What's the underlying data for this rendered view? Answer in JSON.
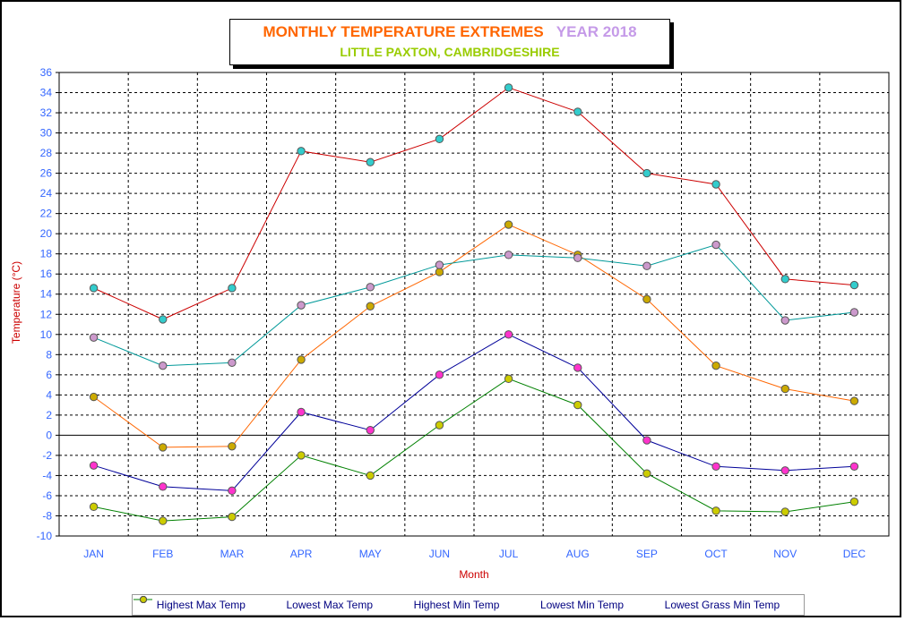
{
  "title": {
    "main": "MONTHLY TEMPERATURE EXTREMES",
    "year": "YEAR  2018",
    "subtitle": "LITTLE PAXTON, CAMBRIDGESHIRE"
  },
  "chart_data": {
    "type": "line",
    "title": "MONTHLY TEMPERATURE EXTREMES   YEAR 2018",
    "subtitle": "LITTLE PAXTON, CAMBRIDGESHIRE",
    "xlabel": "Month",
    "ylabel": "Temperature (°C)",
    "ylim": [
      -10,
      36
    ],
    "yticks": [
      -10,
      -8,
      -6,
      -4,
      -2,
      0,
      2,
      4,
      6,
      8,
      10,
      12,
      14,
      16,
      18,
      20,
      22,
      24,
      26,
      28,
      30,
      32,
      34,
      36
    ],
    "grid": true,
    "legend_position": "bottom",
    "categories": [
      "JAN",
      "FEB",
      "MAR",
      "APR",
      "MAY",
      "JUN",
      "JUL",
      "AUG",
      "SEP",
      "OCT",
      "NOV",
      "DEC"
    ],
    "series": [
      {
        "name": "Highest Max Temp",
        "line_color": "#cc0000",
        "marker_color": "#33cccc",
        "values": [
          14.6,
          11.5,
          14.6,
          28.2,
          27.1,
          29.4,
          34.5,
          32.1,
          26.0,
          24.9,
          15.5,
          14.9
        ]
      },
      {
        "name": "Lowest Max Temp",
        "line_color": "#ff6600",
        "marker_color": "#ccaa00",
        "values": [
          3.8,
          -1.2,
          -1.1,
          7.5,
          12.8,
          16.2,
          20.9,
          17.9,
          13.5,
          6.9,
          4.6,
          3.4
        ]
      },
      {
        "name": "Highest Min Temp",
        "line_color": "#009999",
        "marker_color": "#cc99cc",
        "values": [
          9.7,
          6.9,
          7.2,
          12.9,
          14.7,
          16.9,
          17.9,
          17.6,
          16.8,
          18.9,
          11.4,
          12.2
        ]
      },
      {
        "name": "Lowest Min Temp",
        "line_color": "#000099",
        "marker_color": "#ff33cc",
        "values": [
          -3.0,
          -5.1,
          -5.5,
          2.3,
          0.5,
          6.0,
          10.0,
          6.7,
          -0.5,
          -3.1,
          -3.5,
          -3.1
        ]
      },
      {
        "name": "Lowest Grass Min Temp",
        "line_color": "#008000",
        "marker_color": "#cccc00",
        "values": [
          -7.1,
          -8.5,
          -8.1,
          -2.0,
          -4.0,
          1.0,
          5.6,
          3.0,
          -3.8,
          -7.5,
          -7.6,
          -6.6
        ]
      }
    ]
  }
}
